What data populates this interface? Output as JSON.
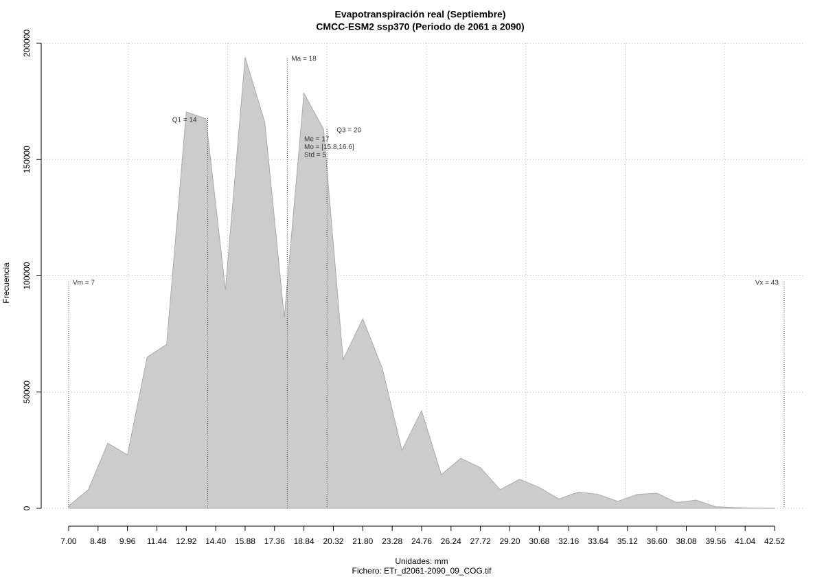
{
  "chart_data": {
    "type": "area",
    "title": "Evapotranspiración real (Septiembre)",
    "subtitle": "CMCC-ESM2 ssp370 (Periodo de 2061 a 2090)",
    "xlabel": "Unidades: mm",
    "caption": "Fichero: ETr_d2061-2090_09_COG.tif",
    "ylabel": "Frecuencia",
    "x": [
      7.0,
      7.99,
      8.97,
      9.96,
      10.95,
      11.93,
      12.92,
      13.91,
      14.89,
      15.88,
      16.87,
      17.85,
      18.84,
      19.83,
      20.81,
      21.8,
      22.79,
      23.77,
      24.76,
      25.75,
      26.73,
      27.72,
      28.71,
      29.69,
      30.68,
      31.67,
      32.65,
      33.64,
      34.63,
      35.61,
      36.6,
      37.59,
      38.57,
      39.56,
      40.55,
      41.53,
      42.52
    ],
    "values": [
      1000,
      8000,
      28000,
      23000,
      65000,
      70500,
      170500,
      167500,
      94000,
      194000,
      166000,
      82000,
      178500,
      163000,
      64000,
      81500,
      60000,
      25000,
      42000,
      14500,
      21500,
      17500,
      8000,
      12500,
      9000,
      4000,
      7000,
      6000,
      3000,
      6000,
      6500,
      2500,
      3500,
      700,
      300,
      100,
      50
    ],
    "color": "#cccccc",
    "xlim": [
      5.62,
      43.97
    ],
    "ylim": [
      0,
      200000
    ],
    "xticks": [
      {
        "value": 7,
        "label": "7.00"
      },
      8.48,
      9.96,
      11.44,
      12.92,
      {
        "value": 14.4,
        "label": "14.40"
      },
      15.88,
      17.36,
      18.84,
      20.32,
      {
        "value": 21.8,
        "label": "21.80"
      },
      23.28,
      24.76,
      26.24,
      27.72,
      {
        "value": 29.2,
        "label": "29.20"
      },
      30.68,
      32.16,
      33.64,
      35.12,
      {
        "value": 36.6,
        "label": "36.60"
      },
      38.08,
      39.56,
      41.04,
      42.52
    ],
    "yticks": [
      0,
      50000,
      100000,
      150000,
      200000
    ],
    "xgrid": [
      10,
      15,
      20,
      25,
      30,
      35,
      40
    ],
    "grid": true,
    "annotations": [
      {
        "text": "Vm = 7",
        "x": 7
      },
      {
        "text": "Q1 = 14",
        "x": 14
      },
      {
        "text": "Ma = 18",
        "x": 18
      },
      {
        "text": "Q3 = 20",
        "x": 20
      },
      {
        "text": "Vx = 43",
        "x": 43
      }
    ],
    "stats": [
      "Me = 17",
      "Mo = [15.8,16.6]",
      "Std = 5"
    ]
  }
}
